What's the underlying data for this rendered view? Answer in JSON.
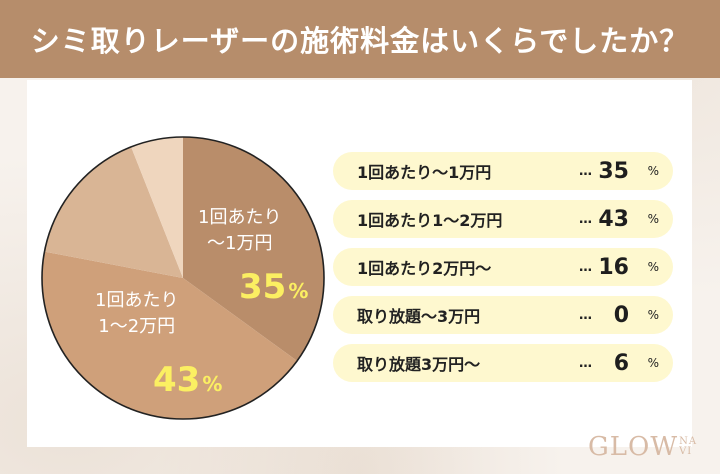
{
  "header": {
    "title": "シミ取りレーザーの施術料金はいくらでしたか？"
  },
  "pie": {
    "labels": [
      {
        "line1": "1回あたり",
        "line2": "〜1万円",
        "pct": "35",
        "unit": "%"
      },
      {
        "line1": "1回あたり",
        "line2": "1〜2万円",
        "pct": "43",
        "unit": "%"
      }
    ],
    "slice_colors": [
      "#B98D6A",
      "#CFA07A",
      "#D9B595",
      "#EFD6BE"
    ],
    "outline_color": "#222222"
  },
  "legend": {
    "dots": "…",
    "unit": "%",
    "items": [
      {
        "label": "1回あたり〜1万円",
        "value": "35"
      },
      {
        "label": "1回あたり1〜2万円",
        "value": "43"
      },
      {
        "label": "1回あたり2万円〜",
        "value": "16"
      },
      {
        "label": "取り放題〜3万円",
        "value": "0"
      },
      {
        "label": "取り放題3万円〜",
        "value": "6"
      }
    ]
  },
  "logo": {
    "main": "GLOW",
    "sub_top": "NA",
    "sub_bottom": "VI"
  },
  "colors": {
    "header_bg": "#B68D6B",
    "pill_bg": "#FEF8CF",
    "pct_highlight": "#FBEF62"
  },
  "chart_data": {
    "type": "pie",
    "title": "シミ取りレーザーの施術料金はいくらでしたか？",
    "categories": [
      "1回あたり〜1万円",
      "1回あたり1〜2万円",
      "1回あたり2万円〜",
      "取り放題〜3万円",
      "取り放題3万円〜"
    ],
    "values": [
      35,
      43,
      16,
      0,
      6
    ],
    "unit": "%",
    "start_angle": "12 o'clock, clockwise",
    "colors": [
      "#B98D6A",
      "#CFA07A",
      "#D9B595",
      "#E5C5A5",
      "#EFD6BE"
    ],
    "legend_position": "right",
    "annotations": [
      {
        "slice": "1回あたり〜1万円",
        "text": "35%"
      },
      {
        "slice": "1回あたり1〜2万円",
        "text": "43%"
      }
    ]
  }
}
